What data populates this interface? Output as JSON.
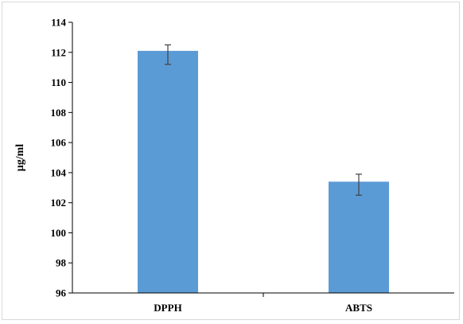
{
  "chart_data": {
    "type": "bar",
    "title": "",
    "xlabel": "",
    "ylabel": "μg/ml",
    "categories": [
      "DPPH",
      "ABTS"
    ],
    "values": [
      112.1,
      103.4
    ],
    "error_bars": [
      {
        "low": 111.2,
        "high": 112.5
      },
      {
        "low": 102.5,
        "high": 103.9
      }
    ],
    "ylim": [
      96,
      114
    ],
    "yticks": [
      96,
      98,
      100,
      102,
      104,
      106,
      108,
      110,
      112,
      114
    ],
    "grid": false,
    "legend": "none",
    "bar_color": "#5b9bd5",
    "axis_color": "#000000"
  }
}
